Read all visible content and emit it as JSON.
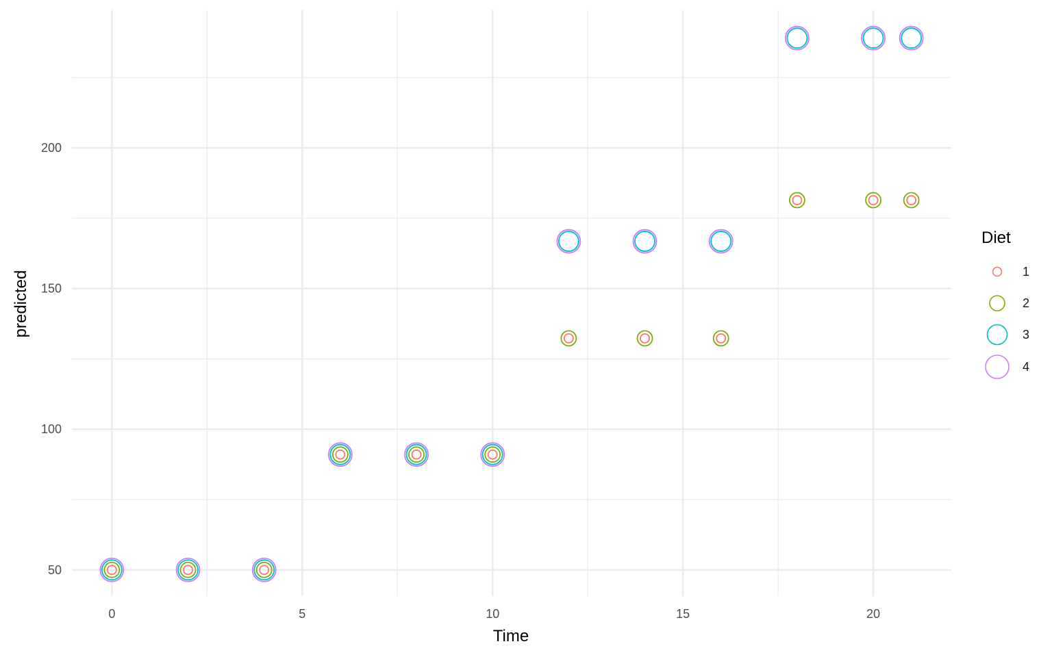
{
  "chart_data": {
    "type": "scatter",
    "xlabel": "Time",
    "ylabel": "predicted",
    "xlim": [
      -1.05,
      22.05
    ],
    "ylim": [
      40.7,
      248.9
    ],
    "x_ticks": [
      0,
      5,
      10,
      15,
      20
    ],
    "x_tick_labels": [
      "0",
      "5",
      "10",
      "15",
      "20"
    ],
    "x_minor_ticks": [
      2.5,
      7.5,
      12.5,
      17.5
    ],
    "y_ticks": [
      50,
      100,
      150,
      200
    ],
    "y_tick_labels": [
      "50",
      "100",
      "150",
      "200"
    ],
    "y_minor_ticks": [
      75,
      125,
      175,
      225
    ],
    "grid": true,
    "legend": {
      "title": "Diet",
      "position": "right"
    },
    "series": [
      {
        "name": "1",
        "color": "#F8766D",
        "size_level": 1,
        "points": [
          [
            0,
            50
          ],
          [
            2,
            50
          ],
          [
            4,
            50
          ],
          [
            6,
            91
          ],
          [
            8,
            91
          ],
          [
            10,
            91
          ],
          [
            12,
            132.3
          ],
          [
            14,
            132.3
          ],
          [
            16,
            132.3
          ],
          [
            18,
            181.4
          ],
          [
            20,
            181.4
          ],
          [
            21,
            181.4
          ]
        ]
      },
      {
        "name": "2",
        "color": "#7CAE00",
        "size_level": 2,
        "points": [
          [
            0,
            50
          ],
          [
            2,
            50
          ],
          [
            4,
            50
          ],
          [
            6,
            91
          ],
          [
            8,
            91
          ],
          [
            10,
            91
          ],
          [
            12,
            132.3
          ],
          [
            14,
            132.3
          ],
          [
            16,
            132.3
          ],
          [
            18,
            181.4
          ],
          [
            20,
            181.4
          ],
          [
            21,
            181.4
          ]
        ]
      },
      {
        "name": "3",
        "color": "#00BFC4",
        "size_level": 3,
        "points": [
          [
            0,
            50
          ],
          [
            2,
            50
          ],
          [
            4,
            50
          ],
          [
            6,
            91
          ],
          [
            8,
            91
          ],
          [
            10,
            91
          ],
          [
            12,
            166.8
          ],
          [
            14,
            166.8
          ],
          [
            16,
            166.8
          ],
          [
            18,
            239
          ],
          [
            20,
            239
          ],
          [
            21,
            239
          ]
        ]
      },
      {
        "name": "4",
        "color": "#C77CFF",
        "size_level": 4,
        "points": [
          [
            0,
            50
          ],
          [
            2,
            50
          ],
          [
            4,
            50
          ],
          [
            6,
            91
          ],
          [
            8,
            91
          ],
          [
            10,
            91
          ],
          [
            12,
            166.8
          ],
          [
            14,
            166.8
          ],
          [
            16,
            166.8
          ],
          [
            18,
            239
          ],
          [
            20,
            239
          ],
          [
            21,
            239
          ]
        ]
      }
    ]
  }
}
